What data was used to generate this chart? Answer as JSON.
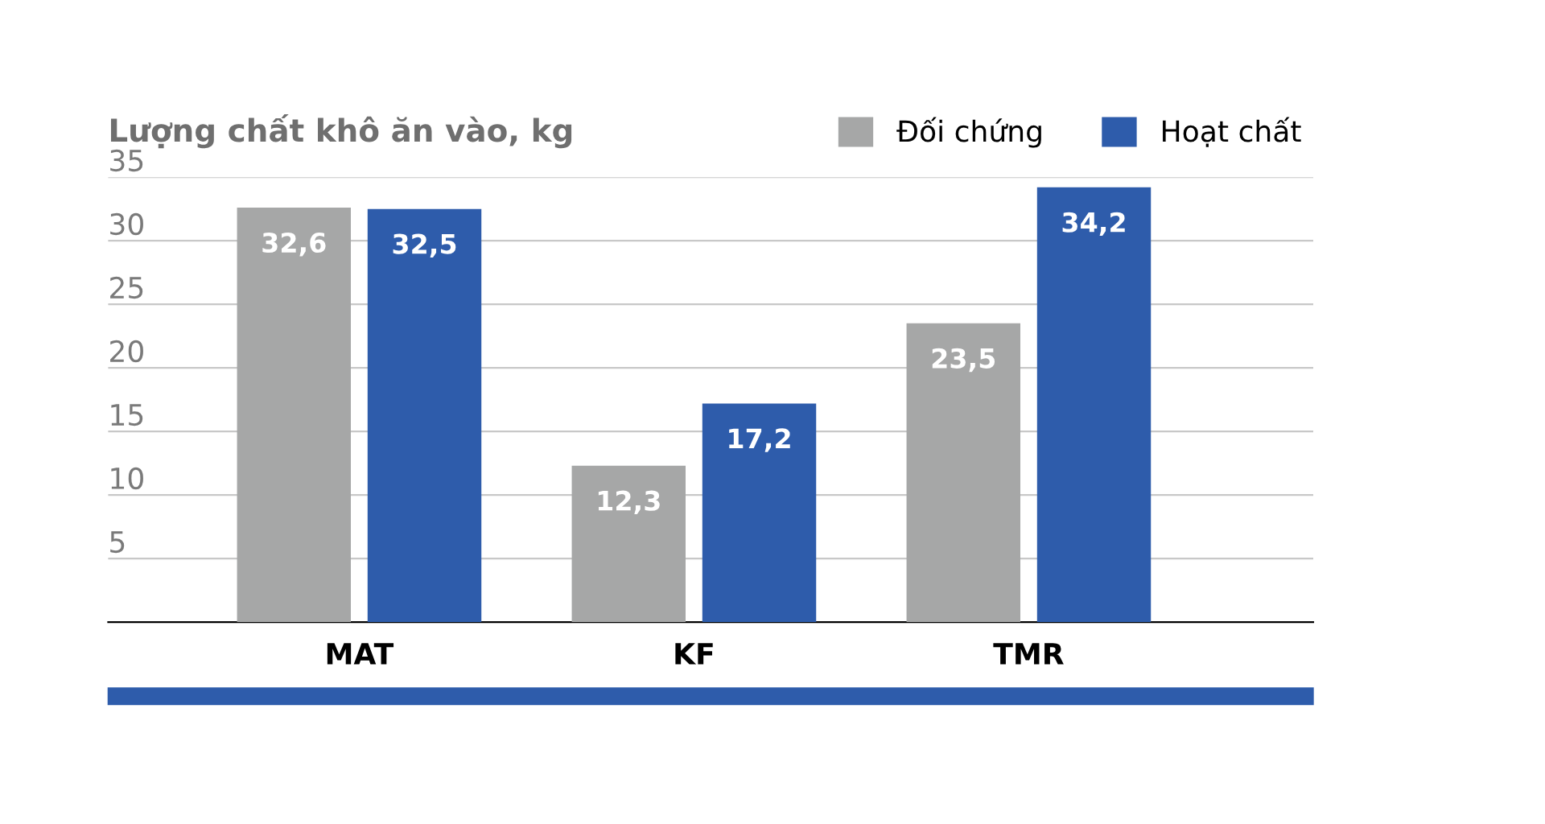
{
  "chart_data": {
    "type": "bar",
    "ylabel": "Lượng chất khô ăn vào, kg",
    "categories": [
      "MAT",
      "KF",
      "TMR"
    ],
    "series": [
      {
        "name": "Đối chứng",
        "color": "#a6a7a7",
        "values": [
          32.6,
          12.3,
          23.5
        ],
        "value_labels": [
          "32,6",
          "12,3",
          "23,5"
        ]
      },
      {
        "name": "Hoạt chất",
        "color": "#2e5cab",
        "values": [
          32.5,
          17.2,
          34.2
        ],
        "value_labels": [
          "32,5",
          "17,2",
          "34,2"
        ]
      }
    ],
    "ylim": [
      0,
      35
    ],
    "yticks": [
      5,
      10,
      15,
      20,
      25,
      30,
      35
    ],
    "grid": "y",
    "legend": "top right"
  }
}
